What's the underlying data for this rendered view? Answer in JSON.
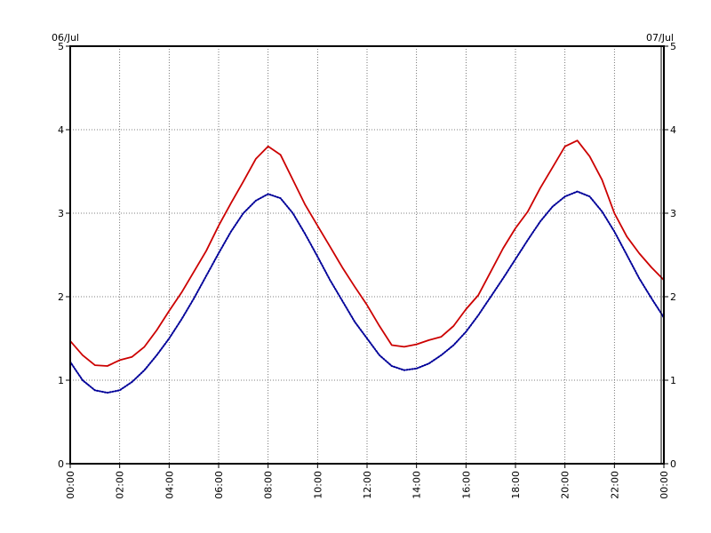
{
  "chart_data": {
    "type": "line",
    "title": "",
    "xlabel": "",
    "ylabel": "",
    "date_start": "06/Jul",
    "date_end": "07/Jul",
    "xlim": [
      0,
      24
    ],
    "ylim": [
      0,
      5
    ],
    "yticks": [
      "0",
      "1",
      "2",
      "3",
      "4",
      "5"
    ],
    "xticks": [
      "00:00",
      "02:00",
      "04:00",
      "06:00",
      "08:00",
      "10:00",
      "12:00",
      "14:00",
      "16:00",
      "18:00",
      "20:00",
      "22:00",
      "00:00"
    ],
    "grid": true,
    "series": [
      {
        "color": "#cc0000",
        "style": "solid",
        "x": [
          0,
          0.5,
          1,
          1.5,
          2,
          2.5,
          3,
          3.5,
          4,
          4.5,
          5,
          5.5,
          6,
          6.5,
          7,
          7.5,
          8,
          8.5,
          9,
          9.5,
          10,
          10.5,
          11,
          11.5,
          12,
          12.5,
          13,
          13.5,
          14,
          14.5,
          15,
          15.5,
          16,
          16.5,
          17,
          17.5,
          18,
          18.5,
          19,
          19.5,
          20,
          20.5,
          21,
          21.5,
          22,
          22.5,
          23,
          23.5,
          24
        ],
        "values": [
          1.47,
          1.3,
          1.18,
          1.17,
          1.24,
          1.28,
          1.4,
          1.6,
          1.83,
          2.05,
          2.3,
          2.55,
          2.85,
          3.12,
          3.38,
          3.65,
          3.8,
          3.7,
          3.4,
          3.1,
          2.85,
          2.6,
          2.35,
          2.12,
          1.9,
          1.65,
          1.42,
          1.4,
          1.43,
          1.48,
          1.52,
          1.65,
          1.85,
          2.02,
          2.3,
          2.58,
          2.82,
          3.02,
          3.3,
          3.55,
          3.8,
          3.87,
          3.68,
          3.4,
          3.0,
          2.72,
          2.52,
          2.35,
          2.2
        ]
      },
      {
        "color": "#000099",
        "style": "dotted",
        "x": [
          0,
          0.5,
          1,
          1.5,
          2,
          2.5,
          3,
          3.5,
          4,
          4.5,
          5,
          5.5,
          6,
          6.5,
          7,
          7.5,
          8,
          8.5,
          9,
          9.5,
          10,
          10.5,
          11,
          11.5,
          12,
          12.5,
          13,
          13.5,
          14,
          14.5,
          15,
          15.5,
          16,
          16.5,
          17,
          17.5,
          18,
          18.5,
          19,
          19.5,
          20,
          20.5,
          21,
          21.5,
          22,
          22.5,
          23,
          23.5,
          24
        ],
        "values": [
          1.22,
          1.0,
          0.88,
          0.85,
          0.88,
          0.98,
          1.12,
          1.3,
          1.5,
          1.73,
          1.98,
          2.25,
          2.52,
          2.78,
          3.0,
          3.15,
          3.23,
          3.18,
          3.0,
          2.75,
          2.48,
          2.2,
          1.95,
          1.7,
          1.5,
          1.3,
          1.17,
          1.12,
          1.14,
          1.2,
          1.3,
          1.42,
          1.58,
          1.78,
          2.0,
          2.22,
          2.45,
          2.68,
          2.9,
          3.08,
          3.2,
          3.26,
          3.2,
          3.02,
          2.78,
          2.5,
          2.22,
          1.98,
          1.75
        ]
      }
    ]
  }
}
